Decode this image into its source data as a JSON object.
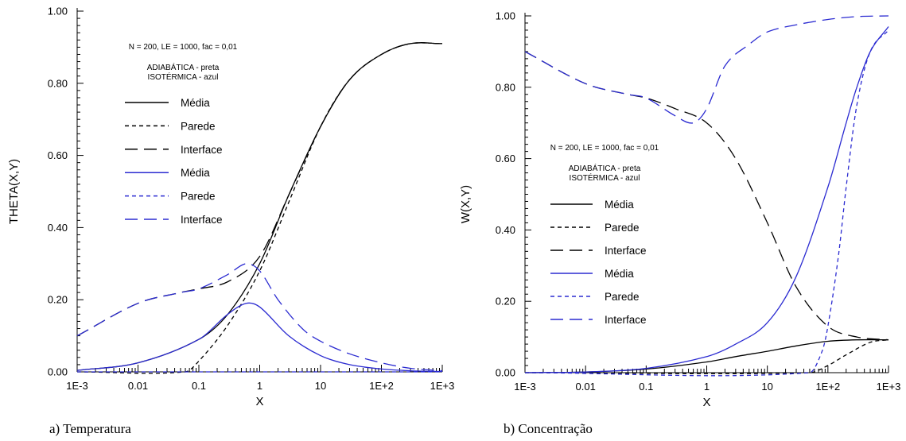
{
  "colors": {
    "black": "#000000",
    "blue": "#2b2bd1"
  },
  "captions": {
    "a": "a) Temperatura",
    "b": "b) Concentração"
  },
  "chart_data": [
    {
      "type": "line",
      "caption": "a) Temperatura",
      "xlabel": "X",
      "ylabel": "THETA(X,Y)",
      "xscale": "log",
      "xlim": [
        0.001,
        1000
      ],
      "ylim": [
        0,
        1
      ],
      "x_ticks": [
        "1E-3",
        "0.01",
        "0.1",
        "1",
        "10",
        "1E+2",
        "1E+3"
      ],
      "y_ticks": [
        "0.00",
        "0.20",
        "0.40",
        "0.60",
        "0.80",
        "1.00"
      ],
      "annotation_line1": "N = 200, LE = 1000, fac = 0,01",
      "annotation_line2": "ADIABÁTICA  - preta",
      "annotation_line3": "ISOTÉRMICA - azul",
      "legend_position": "upper-left",
      "series": [
        {
          "name": "Média",
          "color": "black",
          "dash": "solid",
          "x": [
            0.001,
            0.01,
            0.1,
            0.3,
            1,
            3,
            10,
            30,
            100,
            300,
            1000
          ],
          "y": [
            0.004,
            0.025,
            0.09,
            0.16,
            0.3,
            0.49,
            0.68,
            0.81,
            0.88,
            0.91,
            0.91
          ]
        },
        {
          "name": "Parede",
          "color": "black",
          "dash": "short",
          "x": [
            0.001,
            0.06,
            0.1,
            0.3,
            1,
            3,
            10,
            30,
            100,
            300,
            1000
          ],
          "y": [
            0.0,
            0.0,
            0.03,
            0.13,
            0.28,
            0.47,
            0.68,
            0.81,
            0.88,
            0.91,
            0.91
          ]
        },
        {
          "name": "Interface",
          "color": "black",
          "dash": "long",
          "x": [
            0.001,
            0.01,
            0.05,
            0.1,
            0.3,
            1,
            3,
            10,
            30,
            100,
            300,
            1000
          ],
          "y": [
            0.1,
            0.19,
            0.22,
            0.23,
            0.25,
            0.32,
            0.49,
            0.68,
            0.81,
            0.88,
            0.91,
            0.91
          ]
        },
        {
          "name": "Média",
          "color": "blue",
          "dash": "solid",
          "x": [
            0.001,
            0.01,
            0.1,
            0.3,
            0.6,
            1,
            3,
            10,
            30,
            100,
            300,
            1000
          ],
          "y": [
            0.004,
            0.025,
            0.09,
            0.16,
            0.19,
            0.18,
            0.1,
            0.045,
            0.02,
            0.008,
            0.003,
            0.001
          ]
        },
        {
          "name": "Parede",
          "color": "blue",
          "dash": "short",
          "x": [
            0.001,
            1000
          ],
          "y": [
            0.0,
            0.0
          ]
        },
        {
          "name": "Interface",
          "color": "blue",
          "dash": "long",
          "x": [
            0.001,
            0.01,
            0.05,
            0.1,
            0.3,
            0.6,
            1,
            2,
            5,
            10,
            30,
            100,
            300,
            1000
          ],
          "y": [
            0.1,
            0.19,
            0.22,
            0.23,
            0.27,
            0.3,
            0.28,
            0.2,
            0.12,
            0.085,
            0.05,
            0.025,
            0.01,
            0.003
          ]
        }
      ]
    },
    {
      "type": "line",
      "caption": "b) Concentração",
      "xlabel": "X",
      "ylabel": "W(X,Y)",
      "xscale": "log",
      "xlim": [
        0.001,
        1000
      ],
      "ylim": [
        0,
        1
      ],
      "x_ticks": [
        "1E-3",
        "0.01",
        "0.1",
        "1",
        "10",
        "1E+2",
        "1E+3"
      ],
      "y_ticks": [
        "0.00",
        "0.20",
        "0.40",
        "0.60",
        "0.80",
        "1.00"
      ],
      "annotation_line1": "N = 200, LE = 1000, fac = 0,01",
      "annotation_line2": "ADIABÁTICA  - preta",
      "annotation_line3": "ISOTÉRMICA - azul",
      "legend_position": "center-left",
      "series": [
        {
          "name": "Média",
          "color": "black",
          "dash": "solid",
          "x": [
            0.001,
            0.01,
            0.1,
            1,
            3,
            10,
            30,
            100,
            300,
            1000
          ],
          "y": [
            0.0,
            0.002,
            0.01,
            0.03,
            0.045,
            0.06,
            0.075,
            0.088,
            0.092,
            0.092
          ]
        },
        {
          "name": "Parede",
          "color": "black",
          "dash": "short",
          "x": [
            0.001,
            50,
            100,
            200,
            500,
            1000
          ],
          "y": [
            0.0,
            0.0,
            0.02,
            0.05,
            0.085,
            0.092
          ]
        },
        {
          "name": "Interface",
          "color": "black",
          "dash": "long",
          "x": [
            0.001,
            0.01,
            0.05,
            0.1,
            0.3,
            1,
            3,
            10,
            30,
            100,
            300,
            1000
          ],
          "y": [
            0.9,
            0.81,
            0.78,
            0.77,
            0.74,
            0.7,
            0.6,
            0.42,
            0.24,
            0.13,
            0.1,
            0.092
          ]
        },
        {
          "name": "Média",
          "color": "blue",
          "dash": "solid",
          "x": [
            0.001,
            0.01,
            0.1,
            1,
            3,
            10,
            30,
            100,
            200,
            300,
            500,
            1000
          ],
          "y": [
            0.0,
            0.002,
            0.012,
            0.045,
            0.08,
            0.14,
            0.27,
            0.52,
            0.7,
            0.8,
            0.9,
            0.97
          ]
        },
        {
          "name": "Parede",
          "color": "blue",
          "dash": "short",
          "x": [
            0.001,
            50,
            80,
            100,
            150,
            200,
            300,
            500,
            1000
          ],
          "y": [
            0.0,
            0.0,
            0.06,
            0.13,
            0.33,
            0.52,
            0.75,
            0.9,
            0.96
          ]
        },
        {
          "name": "Interface",
          "color": "blue",
          "dash": "long",
          "x": [
            0.001,
            0.01,
            0.05,
            0.1,
            0.3,
            0.6,
            1,
            2,
            5,
            10,
            30,
            100,
            300,
            1000
          ],
          "y": [
            0.9,
            0.81,
            0.78,
            0.77,
            0.72,
            0.7,
            0.74,
            0.86,
            0.92,
            0.955,
            0.975,
            0.99,
            0.998,
            1.0
          ]
        }
      ]
    }
  ]
}
